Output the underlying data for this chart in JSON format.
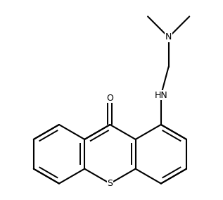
{
  "background_color": "#ffffff",
  "line_color": "#000000",
  "line_width": 1.5,
  "font_size": 9,
  "atoms": {
    "S_label": "S",
    "O_label": "O",
    "NH_label": "HN",
    "N_label": "N"
  },
  "figsize": [
    3.17,
    2.84
  ],
  "dpi": 100
}
